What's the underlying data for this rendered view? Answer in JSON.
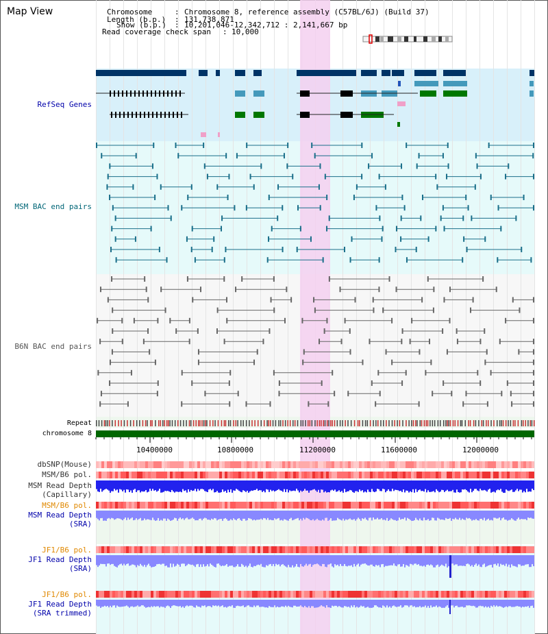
{
  "header": {
    "title": "Map View",
    "chromosome_label": "Chromosome",
    "chromosome_value": "Chromosome 8, reference assembly (C57BL/6J) (Build 37)",
    "length_label": "Length (b.p.)",
    "length_value": "131,738,871",
    "show_label": "Show (b.p.)",
    "show_value": "10,201,046-12,342,712 : 2,141,667 bp",
    "span_label": "Read coverage check span",
    "span_value": "10,000",
    "separator": ":"
  },
  "tracks": {
    "refseq": "RefSeq Genes",
    "msm_bac": "MSM BAC end pairs",
    "b6n_bac": "B6N BAC end pairs",
    "repeat": "Repeat",
    "chromosome": "chromosome 8",
    "dbsnp": "dbSNP(Mouse)",
    "msm_b6_pol_1": "MSM/B6 pol.",
    "msm_depth_cap_1": "MSM Read Depth",
    "msm_depth_cap_2": "(Capillary)",
    "msm_b6_pol_2": "MSM/B6 pol.",
    "msm_depth_sra_1": "MSM Read Depth",
    "msm_depth_sra_2": "(SRA)",
    "jf1_pol_1": "JF1/B6 pol.",
    "jf1_depth_sra_1": "JF1 Read Depth",
    "jf1_depth_sra_2": "(SRA)",
    "jf1_pol_2": "JF1/B6 pol.",
    "jf1_depth_trim_1": "JF1 Read Depth",
    "jf1_depth_trim_2": "(SRA trimmed)"
  },
  "axis": {
    "ticks": [
      "10400000",
      "10800000",
      "11200000",
      "11600000",
      "12000000"
    ]
  },
  "colors": {
    "refseq_bg": "#d8f0fa",
    "bac_bg": "#e6fafa",
    "b6n_bg": "#f7f7f7",
    "highlight": "#f5d0f0",
    "chromosome_bar": "#006600",
    "label_blue": "#0000aa",
    "label_teal": "#006677",
    "label_orange": "#e08800",
    "gene_dark": "#003366",
    "gene_mid": "#4499bb",
    "gene_green": "#007700",
    "depth_blue": "#2222ee",
    "depth_light": "#8888ff",
    "pol_red": "#ee4444"
  }
}
